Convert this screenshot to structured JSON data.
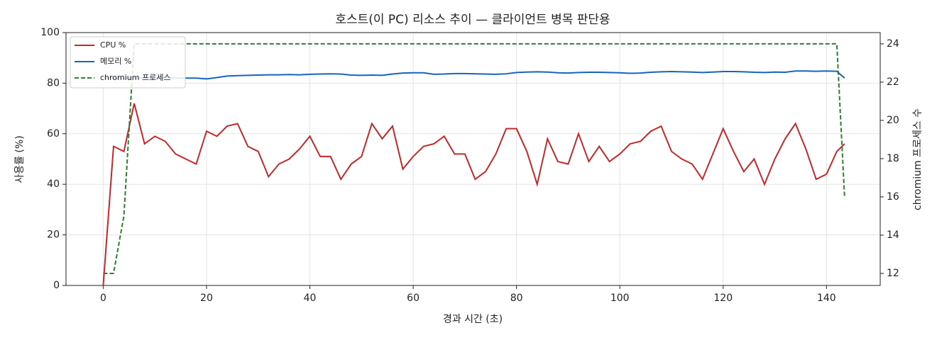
{
  "chart_data": {
    "type": "line",
    "title": "호스트(이 PC) 리소스 추이 — 클라이언트 병목 판단용",
    "xlabel": "경과 시간 (초)",
    "ylabel": "사용률 (%)",
    "y2label": "chromium 프로세스 수",
    "x": [
      0,
      2,
      4,
      6,
      8,
      10,
      12,
      14,
      16,
      18,
      20,
      22,
      24,
      26,
      28,
      30,
      32,
      34,
      36,
      38,
      40,
      42,
      44,
      46,
      48,
      50,
      52,
      54,
      56,
      58,
      60,
      62,
      64,
      66,
      68,
      70,
      72,
      74,
      76,
      78,
      80,
      82,
      84,
      86,
      88,
      90,
      92,
      94,
      96,
      98,
      100,
      102,
      104,
      106,
      108,
      110,
      112,
      114,
      116,
      118,
      120,
      122,
      124,
      126,
      128,
      130,
      132,
      134,
      136,
      138,
      140,
      142,
      143.5
    ],
    "series": [
      {
        "name": "CPU %",
        "color": "#c62828",
        "linestyle": "solid",
        "axis": "y",
        "values": [
          0,
          55,
          53,
          72,
          56,
          59,
          57,
          52,
          50,
          48,
          61,
          59,
          63,
          64,
          55,
          53,
          43,
          48,
          50,
          54,
          59,
          51,
          51,
          42,
          48,
          51,
          64,
          58,
          63,
          46,
          51,
          55,
          56,
          59,
          52,
          52,
          42,
          45,
          52,
          62,
          62,
          53,
          40,
          58,
          49,
          48,
          60,
          49,
          55,
          49,
          52,
          56,
          57,
          61,
          63,
          53,
          50,
          48,
          42,
          52,
          62,
          53,
          45,
          50,
          40,
          50,
          58,
          64,
          54,
          42,
          44,
          53,
          56
        ]
      },
      {
        "name": "메모리 %",
        "color": "#1565c0",
        "linestyle": "solid",
        "axis": "y",
        "values": [
          82,
          82,
          82,
          82,
          82,
          82,
          82,
          82,
          82,
          82,
          81.7,
          82.2,
          82.8,
          83,
          83.1,
          83.2,
          83.3,
          83.3,
          83.4,
          83.3,
          83.5,
          83.6,
          83.7,
          83.6,
          83.2,
          83.1,
          83.2,
          83.1,
          83.6,
          84,
          84.1,
          84.1,
          83.5,
          83.6,
          83.8,
          83.8,
          83.7,
          83.6,
          83.5,
          83.7,
          84.2,
          84.4,
          84.5,
          84.4,
          84.1,
          84,
          84.2,
          84.3,
          84.3,
          84.2,
          84.1,
          83.9,
          84,
          84.3,
          84.5,
          84.6,
          84.5,
          84.4,
          84.2,
          84.4,
          84.6,
          84.6,
          84.5,
          84.3,
          84.2,
          84.4,
          84.3,
          84.8,
          84.8,
          84.7,
          84.8,
          84.7,
          82
        ]
      },
      {
        "name": "chromium 프로세스",
        "color": "#2e7d32",
        "linestyle": "dashed",
        "axis": "y2",
        "values": [
          12,
          12,
          15,
          24,
          24,
          24,
          24,
          24,
          24,
          24,
          24,
          24,
          24,
          24,
          24,
          24,
          24,
          24,
          24,
          24,
          24,
          24,
          24,
          24,
          24,
          24,
          24,
          24,
          24,
          24,
          24,
          24,
          24,
          24,
          24,
          24,
          24,
          24,
          24,
          24,
          24,
          24,
          24,
          24,
          24,
          24,
          24,
          24,
          24,
          24,
          24,
          24,
          24,
          24,
          24,
          24,
          24,
          24,
          24,
          24,
          24,
          24,
          24,
          24,
          24,
          24,
          24,
          24,
          24,
          24,
          24,
          24,
          16
        ]
      }
    ],
    "xlim": [
      -7.2,
      150.4
    ],
    "xticks": [
      0,
      20,
      40,
      60,
      80,
      100,
      120,
      140
    ],
    "ylim": [
      0,
      100
    ],
    "yticks": [
      0,
      20,
      40,
      60,
      80,
      100
    ],
    "y2lim": [
      11.37,
      24.59
    ],
    "y2ticks": [
      12,
      14,
      16,
      18,
      20,
      22,
      24
    ],
    "grid": true,
    "legend": "upper-left"
  }
}
